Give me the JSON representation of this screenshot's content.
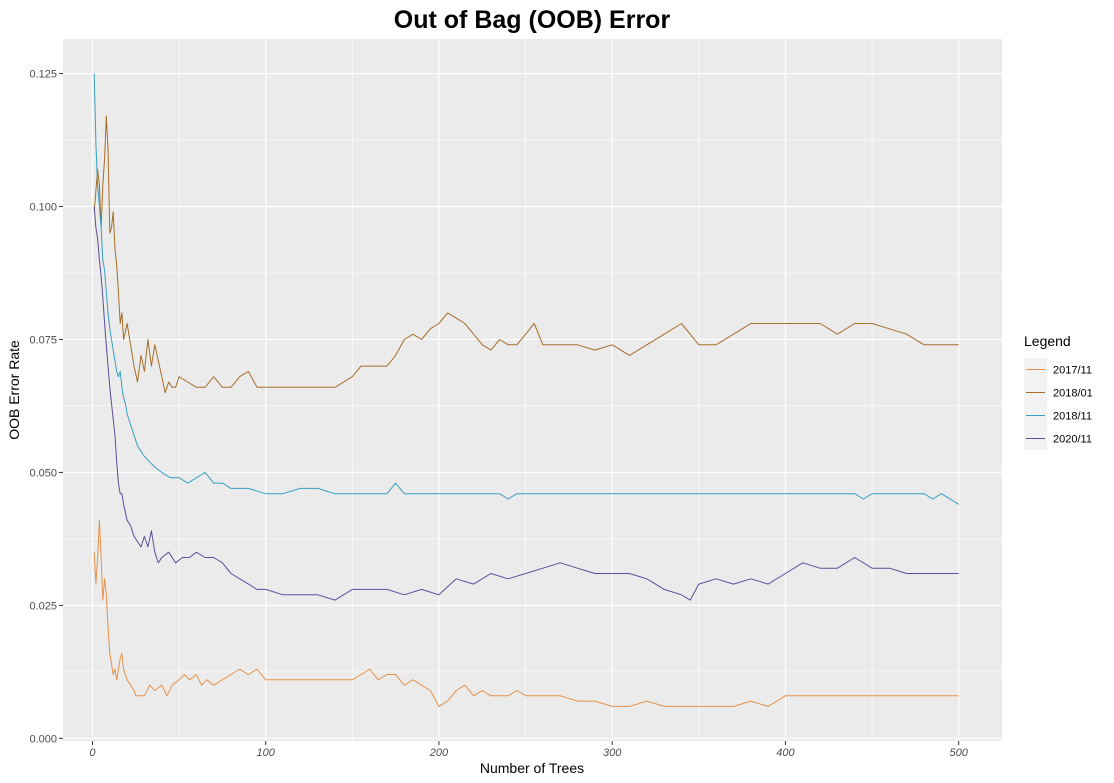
{
  "chart_data": {
    "type": "line",
    "title": "Out of Bag (OOB) Error",
    "xlabel": "Number of Trees",
    "ylabel": "OOB Error Rate",
    "xlim": [
      -17,
      525
    ],
    "ylim": [
      -0.0005,
      0.1315
    ],
    "xticks": [
      0,
      100,
      200,
      300,
      400,
      500
    ],
    "xtick_labels": [
      "0",
      "100",
      "200",
      "300",
      "400",
      "500"
    ],
    "yticks": [
      0.0,
      0.025,
      0.05,
      0.075,
      0.1,
      0.125
    ],
    "ytick_labels": [
      "0.000",
      "0.025",
      "0.050",
      "0.075",
      "0.100",
      "0.125"
    ],
    "grid": true,
    "legend": {
      "title": "Legend",
      "position": "right"
    },
    "series": [
      {
        "name": "2017/11",
        "color": "#e6924a",
        "x": [
          1,
          2,
          3,
          4,
          5,
          6,
          7,
          8,
          9,
          10,
          11,
          12,
          13,
          14,
          15,
          16,
          17,
          18,
          20,
          22,
          24,
          25,
          27,
          30,
          33,
          36,
          40,
          43,
          46,
          50,
          53,
          56,
          60,
          63,
          66,
          70,
          75,
          80,
          85,
          90,
          95,
          100,
          110,
          120,
          130,
          140,
          150,
          155,
          160,
          165,
          170,
          175,
          180,
          185,
          190,
          195,
          200,
          205,
          210,
          215,
          220,
          225,
          230,
          235,
          240,
          245,
          250,
          260,
          270,
          280,
          290,
          300,
          310,
          320,
          330,
          340,
          350,
          360,
          370,
          380,
          390,
          400,
          410,
          420,
          430,
          440,
          450,
          460,
          470,
          480,
          490,
          500
        ],
        "y": [
          0.035,
          0.029,
          0.034,
          0.041,
          0.034,
          0.026,
          0.03,
          0.027,
          0.021,
          0.016,
          0.014,
          0.012,
          0.013,
          0.011,
          0.013,
          0.015,
          0.016,
          0.013,
          0.011,
          0.01,
          0.009,
          0.008,
          0.008,
          0.008,
          0.01,
          0.009,
          0.01,
          0.008,
          0.01,
          0.011,
          0.012,
          0.011,
          0.012,
          0.01,
          0.011,
          0.01,
          0.011,
          0.012,
          0.013,
          0.012,
          0.013,
          0.011,
          0.011,
          0.011,
          0.011,
          0.011,
          0.011,
          0.012,
          0.013,
          0.011,
          0.012,
          0.012,
          0.01,
          0.011,
          0.01,
          0.009,
          0.006,
          0.007,
          0.009,
          0.01,
          0.008,
          0.009,
          0.008,
          0.008,
          0.008,
          0.009,
          0.008,
          0.008,
          0.008,
          0.007,
          0.007,
          0.006,
          0.006,
          0.007,
          0.006,
          0.006,
          0.006,
          0.006,
          0.006,
          0.007,
          0.006,
          0.008,
          0.008,
          0.008,
          0.008,
          0.008,
          0.008,
          0.008,
          0.008,
          0.008,
          0.008,
          0.008
        ]
      },
      {
        "name": "2018/01",
        "color": "#a66e29",
        "x": [
          1,
          2,
          3,
          4,
          5,
          6,
          7,
          8,
          9,
          10,
          11,
          12,
          13,
          14,
          15,
          16,
          17,
          18,
          20,
          22,
          24,
          26,
          28,
          30,
          32,
          34,
          36,
          38,
          40,
          42,
          44,
          46,
          48,
          50,
          55,
          60,
          65,
          70,
          75,
          80,
          85,
          90,
          95,
          100,
          110,
          120,
          130,
          140,
          150,
          155,
          160,
          165,
          170,
          175,
          180,
          185,
          190,
          195,
          200,
          205,
          210,
          215,
          220,
          225,
          230,
          235,
          240,
          245,
          250,
          255,
          260,
          270,
          280,
          290,
          300,
          310,
          320,
          330,
          340,
          350,
          360,
          370,
          380,
          390,
          400,
          410,
          420,
          430,
          440,
          450,
          460,
          470,
          480,
          490,
          500
        ],
        "y": [
          0.099,
          0.103,
          0.107,
          0.104,
          0.096,
          0.104,
          0.109,
          0.117,
          0.111,
          0.095,
          0.096,
          0.099,
          0.092,
          0.089,
          0.084,
          0.078,
          0.08,
          0.075,
          0.078,
          0.074,
          0.07,
          0.067,
          0.072,
          0.069,
          0.075,
          0.07,
          0.074,
          0.071,
          0.068,
          0.065,
          0.067,
          0.066,
          0.066,
          0.068,
          0.067,
          0.066,
          0.066,
          0.068,
          0.066,
          0.066,
          0.068,
          0.069,
          0.066,
          0.066,
          0.066,
          0.066,
          0.066,
          0.066,
          0.068,
          0.07,
          0.07,
          0.07,
          0.07,
          0.072,
          0.075,
          0.076,
          0.075,
          0.077,
          0.078,
          0.08,
          0.079,
          0.078,
          0.076,
          0.074,
          0.073,
          0.075,
          0.074,
          0.074,
          0.076,
          0.078,
          0.074,
          0.074,
          0.074,
          0.073,
          0.074,
          0.072,
          0.074,
          0.076,
          0.078,
          0.074,
          0.074,
          0.076,
          0.078,
          0.078,
          0.078,
          0.078,
          0.078,
          0.076,
          0.078,
          0.078,
          0.077,
          0.076,
          0.074,
          0.074,
          0.074
        ]
      },
      {
        "name": "2018/11",
        "color": "#3a9fc2",
        "x": [
          1,
          2,
          3,
          4,
          5,
          6,
          7,
          8,
          9,
          10,
          11,
          12,
          13,
          14,
          15,
          16,
          17,
          18,
          19,
          20,
          22,
          24,
          26,
          28,
          30,
          33,
          36,
          40,
          45,
          50,
          55,
          60,
          65,
          70,
          75,
          80,
          90,
          100,
          110,
          120,
          130,
          140,
          150,
          160,
          170,
          175,
          180,
          190,
          200,
          220,
          235,
          240,
          245,
          250,
          300,
          350,
          400,
          440,
          445,
          450,
          480,
          485,
          490,
          500
        ],
        "y": [
          0.125,
          0.112,
          0.104,
          0.1,
          0.096,
          0.09,
          0.088,
          0.084,
          0.08,
          0.077,
          0.075,
          0.073,
          0.071,
          0.069,
          0.068,
          0.069,
          0.066,
          0.064,
          0.063,
          0.061,
          0.059,
          0.057,
          0.055,
          0.054,
          0.053,
          0.052,
          0.051,
          0.05,
          0.049,
          0.049,
          0.048,
          0.049,
          0.05,
          0.048,
          0.048,
          0.047,
          0.047,
          0.046,
          0.046,
          0.047,
          0.047,
          0.046,
          0.046,
          0.046,
          0.046,
          0.048,
          0.046,
          0.046,
          0.046,
          0.046,
          0.046,
          0.045,
          0.046,
          0.046,
          0.046,
          0.046,
          0.046,
          0.046,
          0.045,
          0.046,
          0.046,
          0.045,
          0.046,
          0.044
        ]
      },
      {
        "name": "2020/11",
        "color": "#5c4f99",
        "x": [
          1,
          2,
          3,
          4,
          5,
          6,
          7,
          8,
          9,
          10,
          11,
          12,
          13,
          14,
          15,
          16,
          17,
          18,
          20,
          22,
          24,
          26,
          28,
          30,
          32,
          34,
          36,
          38,
          40,
          44,
          48,
          52,
          56,
          60,
          65,
          70,
          75,
          80,
          85,
          90,
          95,
          100,
          110,
          120,
          130,
          140,
          150,
          160,
          170,
          180,
          190,
          200,
          210,
          220,
          230,
          240,
          250,
          260,
          270,
          280,
          290,
          300,
          310,
          320,
          330,
          340,
          345,
          350,
          360,
          370,
          380,
          390,
          400,
          410,
          420,
          430,
          440,
          450,
          460,
          470,
          480,
          490,
          500
        ],
        "y": [
          0.1,
          0.096,
          0.094,
          0.09,
          0.087,
          0.083,
          0.078,
          0.074,
          0.07,
          0.066,
          0.063,
          0.06,
          0.057,
          0.052,
          0.048,
          0.046,
          0.046,
          0.044,
          0.041,
          0.04,
          0.038,
          0.037,
          0.036,
          0.038,
          0.036,
          0.039,
          0.035,
          0.033,
          0.034,
          0.035,
          0.033,
          0.034,
          0.034,
          0.035,
          0.034,
          0.034,
          0.033,
          0.031,
          0.03,
          0.029,
          0.028,
          0.028,
          0.027,
          0.027,
          0.027,
          0.026,
          0.028,
          0.028,
          0.028,
          0.027,
          0.028,
          0.027,
          0.03,
          0.029,
          0.031,
          0.03,
          0.031,
          0.032,
          0.033,
          0.032,
          0.031,
          0.031,
          0.031,
          0.03,
          0.028,
          0.027,
          0.026,
          0.029,
          0.03,
          0.029,
          0.03,
          0.029,
          0.031,
          0.033,
          0.032,
          0.032,
          0.034,
          0.032,
          0.032,
          0.031,
          0.031,
          0.031,
          0.031
        ]
      }
    ]
  }
}
